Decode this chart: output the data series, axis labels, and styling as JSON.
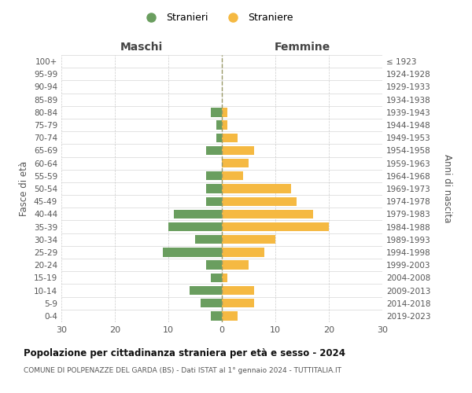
{
  "age_groups": [
    "100+",
    "95-99",
    "90-94",
    "85-89",
    "80-84",
    "75-79",
    "70-74",
    "65-69",
    "60-64",
    "55-59",
    "50-54",
    "45-49",
    "40-44",
    "35-39",
    "30-34",
    "25-29",
    "20-24",
    "15-19",
    "10-14",
    "5-9",
    "0-4"
  ],
  "birth_years": [
    "≤ 1923",
    "1924-1928",
    "1929-1933",
    "1934-1938",
    "1939-1943",
    "1944-1948",
    "1949-1953",
    "1954-1958",
    "1959-1963",
    "1964-1968",
    "1969-1973",
    "1974-1978",
    "1979-1983",
    "1984-1988",
    "1989-1993",
    "1994-1998",
    "1999-2003",
    "2004-2008",
    "2009-2013",
    "2014-2018",
    "2019-2023"
  ],
  "maschi": [
    0,
    0,
    0,
    0,
    2,
    1,
    1,
    3,
    0,
    3,
    3,
    3,
    9,
    10,
    5,
    11,
    3,
    2,
    6,
    4,
    2
  ],
  "femmine": [
    0,
    0,
    0,
    0,
    1,
    1,
    3,
    6,
    5,
    4,
    13,
    14,
    17,
    20,
    10,
    8,
    5,
    1,
    6,
    6,
    3
  ],
  "color_maschi": "#6a9e5f",
  "color_femmine": "#f5b942",
  "title": "Popolazione per cittadinanza straniera per età e sesso - 2024",
  "subtitle": "COMUNE DI POLPENAZZE DEL GARDA (BS) - Dati ISTAT al 1° gennaio 2024 - TUTTITALIA.IT",
  "xlabel_left": "Maschi",
  "xlabel_right": "Femmine",
  "ylabel_left": "Fasce di età",
  "ylabel_right": "Anni di nascita",
  "legend_maschi": "Stranieri",
  "legend_femmine": "Straniere",
  "xlim": 30,
  "background_color": "#ffffff",
  "grid_color": "#cccccc"
}
